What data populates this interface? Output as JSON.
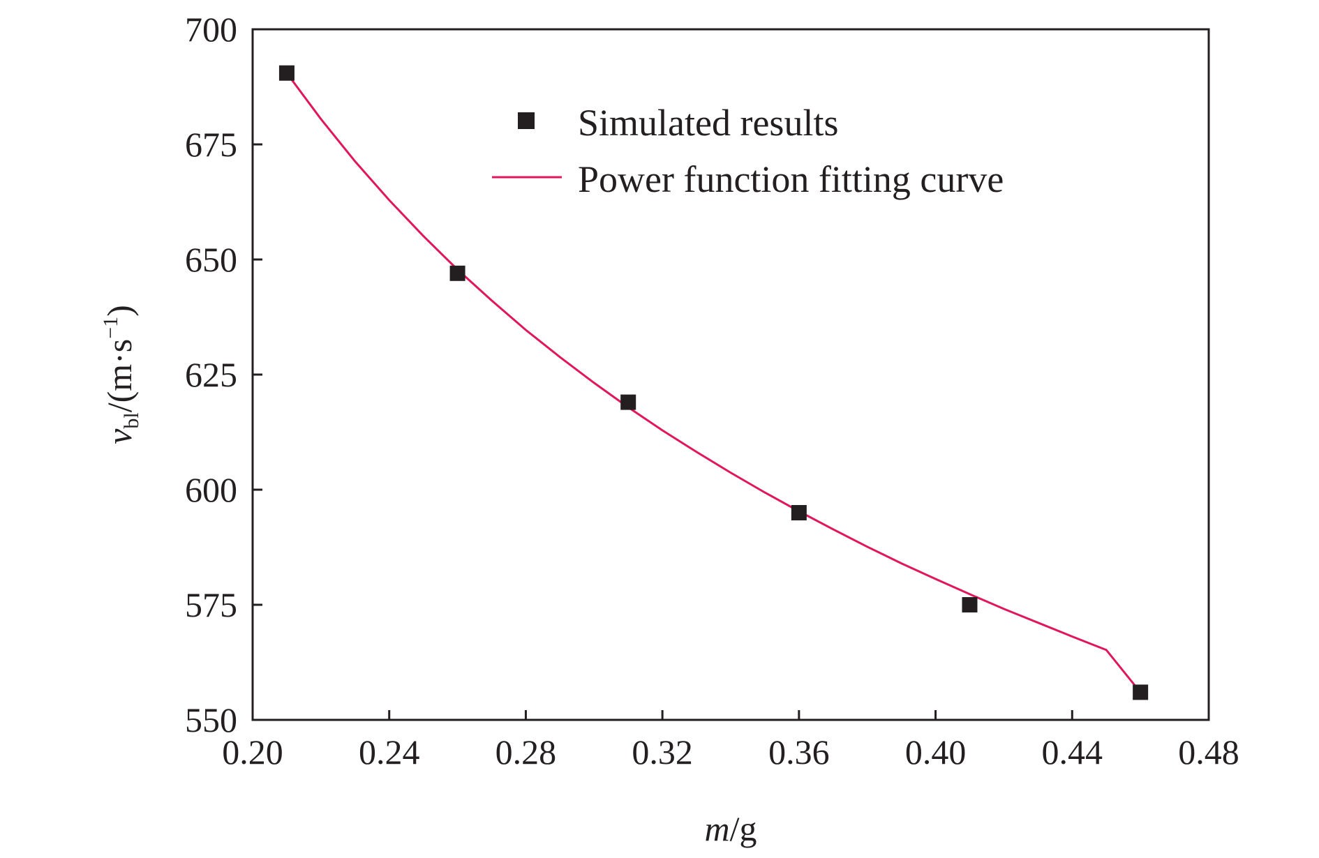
{
  "chart_data": {
    "type": "scatter",
    "xlabel_italic": "m",
    "xlabel_unit": "/g",
    "ylabel_italic": "v",
    "ylabel_sub": "bl",
    "ylabel_unit_open": "/(m·s",
    "ylabel_sup": "−1",
    "ylabel_unit_close": ")",
    "xlim": [
      0.2,
      0.48
    ],
    "ylim": [
      550,
      700
    ],
    "xticks": [
      "0.20",
      "0.24",
      "0.28",
      "0.32",
      "0.36",
      "0.40",
      "0.44",
      "0.48"
    ],
    "yticks": [
      "550",
      "575",
      "600",
      "625",
      "650",
      "675",
      "700"
    ],
    "legend_position": "top-center",
    "series": [
      {
        "name": "Simulated results",
        "kind": "markers",
        "marker": "square",
        "color": "#231f20",
        "x": [
          0.21,
          0.26,
          0.31,
          0.36,
          0.41,
          0.46
        ],
        "y": [
          690.5,
          647,
          619,
          595,
          575,
          556
        ]
      },
      {
        "name": "Power function fitting curve",
        "kind": "line",
        "color": "#e0175a",
        "x": [
          0.21,
          0.22,
          0.23,
          0.24,
          0.25,
          0.26,
          0.27,
          0.28,
          0.29,
          0.3,
          0.31,
          0.32,
          0.33,
          0.34,
          0.35,
          0.36,
          0.37,
          0.38,
          0.39,
          0.4,
          0.41,
          0.42,
          0.43,
          0.44,
          0.45,
          0.46
        ],
        "y": [
          690.5,
          680.5,
          671.3,
          662.9,
          655.1,
          647.8,
          641.1,
          634.7,
          628.8,
          623.2,
          617.9,
          612.9,
          608.2,
          603.7,
          599.4,
          595.3,
          591.4,
          587.6,
          584.0,
          580.6,
          577.3,
          574.1,
          571.1,
          568.1,
          565.2,
          556.0
        ]
      }
    ]
  }
}
